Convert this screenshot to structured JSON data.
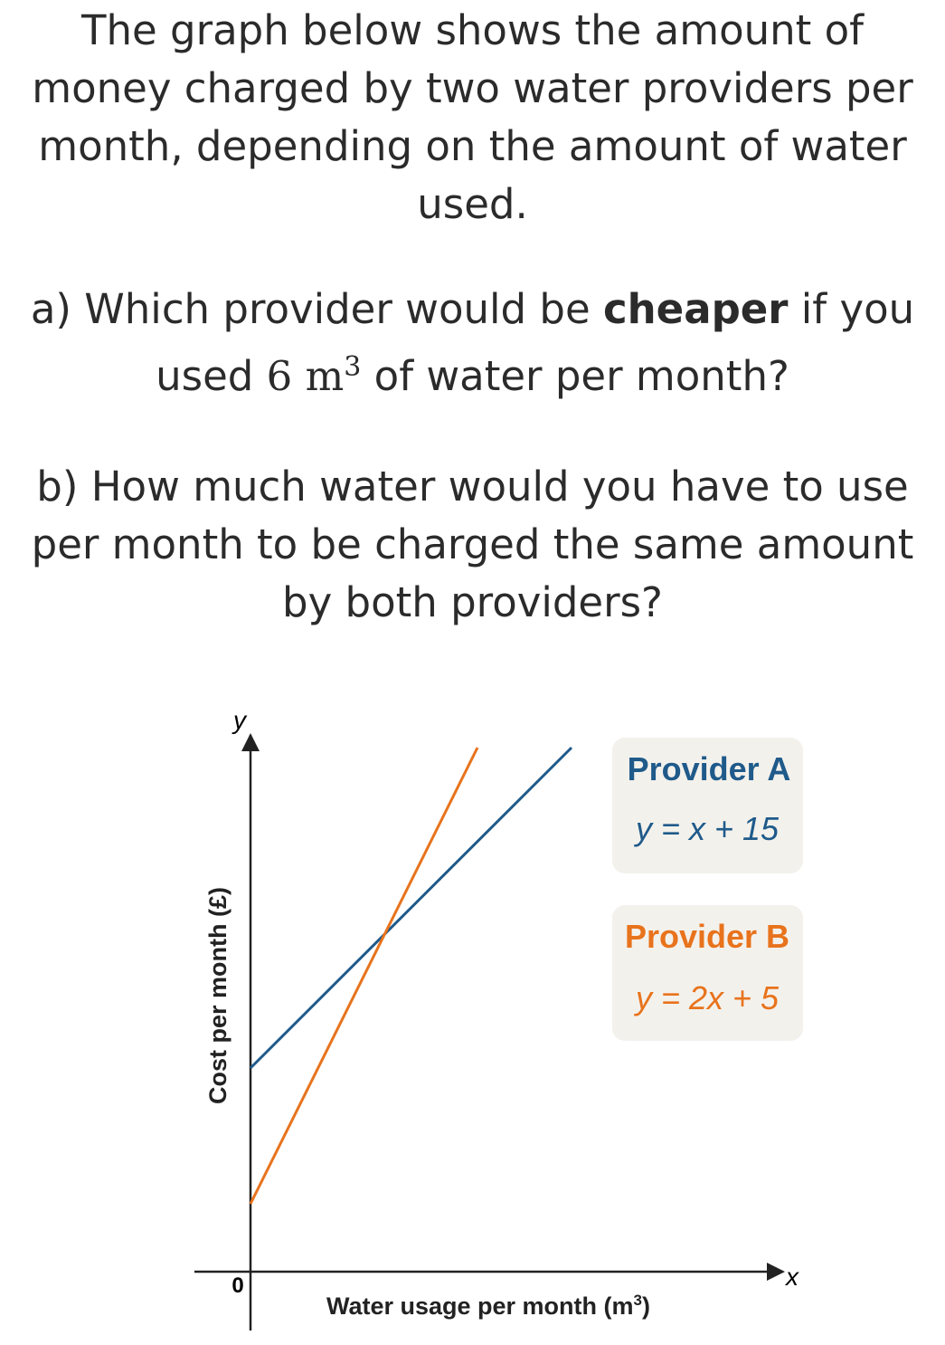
{
  "question": {
    "intro": "The graph below shows the amount of money charged by two water providers per month, depending on the amount of water used.",
    "part_a": [
      "a) Which provider would be ",
      "cheaper",
      " if you used ",
      "6 m",
      "3",
      " of water per month?"
    ],
    "part_b": "b) How much water would you have to use per month to be charged the same amount by both providers?"
  },
  "graph": {
    "y_label": "y",
    "x_label": "x",
    "origin": "0",
    "y_axis_title": "Cost per month (£)",
    "x_axis_title": [
      "Water usage per month (m",
      "3",
      ")"
    ],
    "providers": [
      {
        "name": "Provider A",
        "equation": "y = x + 15"
      },
      {
        "name": "Provider B",
        "equation": "y = 2x + 5"
      }
    ]
  }
}
